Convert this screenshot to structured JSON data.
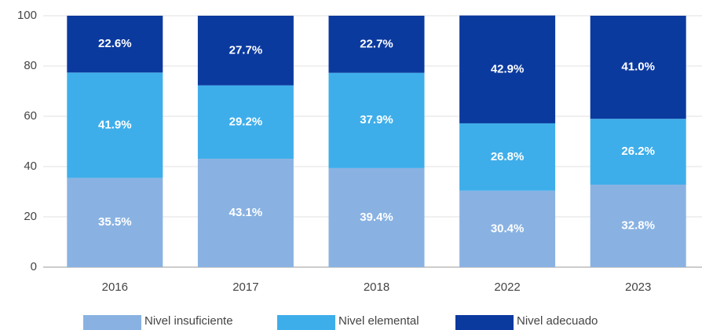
{
  "chart_data": {
    "type": "stacked_bar",
    "categories": [
      "2016",
      "2017",
      "2018",
      "2022",
      "2023"
    ],
    "series": [
      {
        "name": "Nivel insuficiente",
        "color": "#89b2e2",
        "values": [
          35.5,
          43.1,
          39.4,
          30.4,
          32.8
        ],
        "value_labels": [
          "35.5%",
          "43.1%",
          "39.4%",
          "30.4%",
          "32.8%"
        ]
      },
      {
        "name": "Nivel elemental",
        "color": "#3eaeea",
        "values": [
          41.9,
          29.2,
          37.9,
          26.8,
          26.2
        ],
        "value_labels": [
          "41.9%",
          "29.2%",
          "37.9%",
          "26.8%",
          "26.2%"
        ]
      },
      {
        "name": "Nivel adecuado",
        "color": "#0b3a9f",
        "values": [
          22.6,
          27.7,
          22.7,
          42.9,
          41.0
        ],
        "value_labels": [
          "22.6%",
          "27.7%",
          "22.7%",
          "42.9%",
          "41.0%"
        ]
      }
    ],
    "ylim": [
      0,
      100
    ],
    "yticks": [
      0,
      20,
      40,
      60,
      80,
      100
    ],
    "grid": true,
    "legend": "bottom"
  }
}
